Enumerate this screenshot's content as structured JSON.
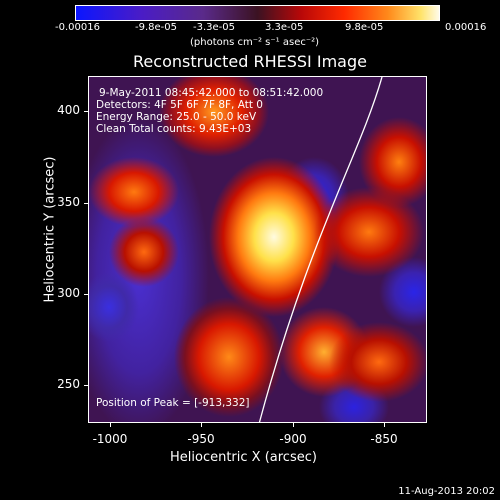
{
  "colorbar": {
    "ticks": [
      "-0.00016",
      "-9.8e-05",
      "-3.3e-05",
      "3.3e-05",
      "9.8e-05",
      "0.00016"
    ],
    "units": "(photons cm⁻² s⁻¹ asec⁻²)"
  },
  "title": "Reconstructed RHESSI Image",
  "info": {
    "time": "9-May-2011 08:45:42.000 to 08:51:42.000",
    "detectors": "Detectors: 4F 5F 6F 7F 8F, Att 0",
    "energy": "Energy Range: 25.0 - 50.0 keV",
    "clean": "Clean    Total counts: 9.43E+03"
  },
  "peak": "Position of Peak = [-913,332]",
  "axes": {
    "y_ticks": [
      "400",
      "350",
      "300",
      "250"
    ],
    "x_ticks": [
      "-1000",
      "-950",
      "-900",
      "-850"
    ],
    "xlabel": "Heliocentric X (arcsec)",
    "ylabel": "Heliocentric Y (arcsec)"
  },
  "footer": "11-Aug-2013 20:02"
}
